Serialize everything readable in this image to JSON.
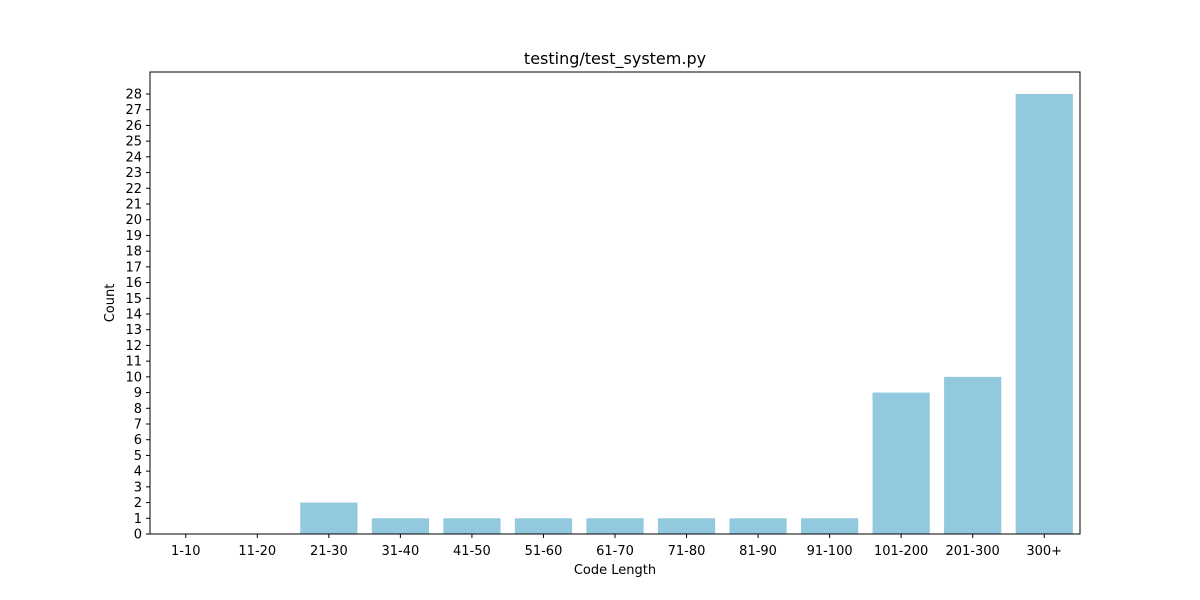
{
  "chart_data": {
    "type": "bar",
    "title": "testing/test_system.py",
    "xlabel": "Code Length",
    "ylabel": "Count",
    "categories": [
      "1-10",
      "11-20",
      "21-30",
      "31-40",
      "41-50",
      "51-60",
      "61-70",
      "71-80",
      "81-90",
      "91-100",
      "101-200",
      "201-300",
      "300+"
    ],
    "values": [
      0,
      0,
      2,
      1,
      1,
      1,
      1,
      1,
      1,
      1,
      9,
      10,
      28
    ],
    "ylim": [
      0,
      29.4
    ],
    "yticks": [
      0,
      1,
      2,
      3,
      4,
      5,
      6,
      7,
      8,
      9,
      10,
      11,
      12,
      13,
      14,
      15,
      16,
      17,
      18,
      19,
      20,
      21,
      22,
      23,
      24,
      25,
      26,
      27,
      28
    ],
    "bar_color": "#92c9df",
    "grid": false,
    "legend": "none"
  }
}
